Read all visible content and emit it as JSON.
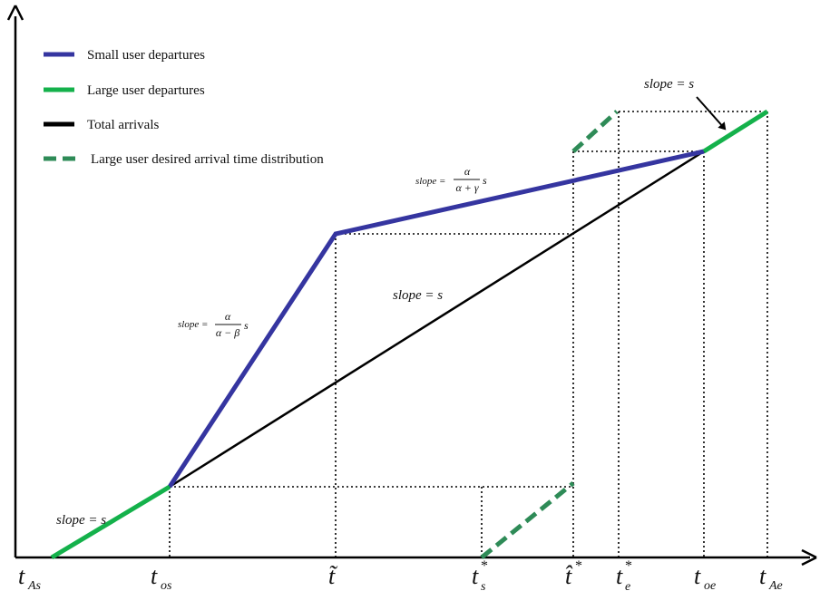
{
  "legend": {
    "small": "Small user departures",
    "large": "Large user departures",
    "total": "Total arrivals",
    "desired": "Large user desired arrival time distribution"
  },
  "slopes": {
    "s_bottom": "slope = s",
    "s_middle": "slope = s",
    "s_top": "slope = s",
    "beta": {
      "prefix": "slope =",
      "num": "α",
      "den": "α − β",
      "suffix": "s"
    },
    "gamma": {
      "prefix": "slope =",
      "num": "α",
      "den": "α + γ",
      "suffix": "s"
    }
  },
  "ticks": [
    {
      "main": "t",
      "sub": "As",
      "sup": ""
    },
    {
      "main": "t",
      "sub": "os",
      "sup": ""
    },
    {
      "main": "t̃",
      "sub": "",
      "sup": ""
    },
    {
      "main": "t",
      "sub": "s",
      "sup": "*"
    },
    {
      "main": "t̂",
      "sub": "",
      "sup": "*"
    },
    {
      "main": "t",
      "sub": "e",
      "sup": "*"
    },
    {
      "main": "t",
      "sub": "oe",
      "sup": ""
    },
    {
      "main": "t",
      "sub": "Ae",
      "sup": ""
    }
  ],
  "colors": {
    "small": "#3535a0",
    "large": "#14b14b",
    "total": "#000000",
    "desired": "#2e8b57",
    "axis": "#000000",
    "guide": "#000000"
  }
}
